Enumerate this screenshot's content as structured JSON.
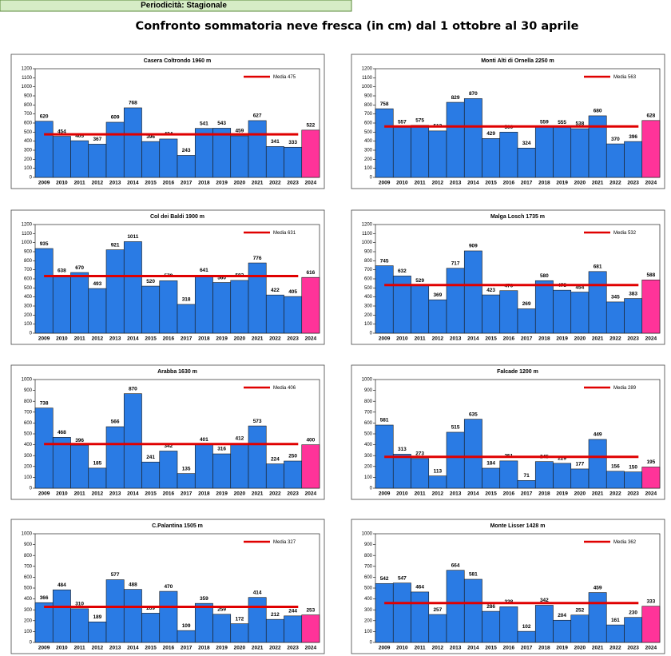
{
  "header": {
    "text": "Periodicità: Stagionale"
  },
  "title": "Confronto sommatoria neve fresca (in cm)  dal 1 ottobre al 30 aprile",
  "chart_data": [
    {
      "type": "bar",
      "title": "Casera Coltrondo 1960 m",
      "categories": [
        "2009",
        "2010",
        "2011",
        "2012",
        "2013",
        "2014",
        "2015",
        "2016",
        "2017",
        "2018",
        "2019",
        "2020",
        "2021",
        "2022",
        "2023",
        "2024"
      ],
      "values": [
        620,
        454,
        405,
        367,
        609,
        768,
        396,
        424,
        243,
        541,
        543,
        459,
        627,
        341,
        333,
        522
      ],
      "colors": [
        "#2a7be4",
        "#2a7be4",
        "#2a7be4",
        "#2a7be4",
        "#2a7be4",
        "#2a7be4",
        "#2a7be4",
        "#2a7be4",
        "#2a7be4",
        "#2a7be4",
        "#2a7be4",
        "#2a7be4",
        "#2a7be4",
        "#2a7be4",
        "#2a7be4",
        "#ff3399"
      ],
      "mean": {
        "label": "Media",
        "value": 475,
        "color": "#e00000"
      },
      "ylim": [
        0,
        1200
      ],
      "yticks": [
        0,
        100,
        200,
        300,
        400,
        500,
        600,
        700,
        800,
        900,
        1000,
        1100,
        1200
      ]
    },
    {
      "type": "bar",
      "title": "Monti Alti di Ornella 2250 m",
      "categories": [
        "2009",
        "2010",
        "2011",
        "2012",
        "2013",
        "2014",
        "2015",
        "2016",
        "2017",
        "2018",
        "2019",
        "2020",
        "2021",
        "2022",
        "2023",
        "2024"
      ],
      "values": [
        758,
        557,
        575,
        513,
        829,
        870,
        429,
        500,
        324,
        559,
        555,
        538,
        680,
        370,
        396,
        628
      ],
      "colors": [
        "#2a7be4",
        "#2a7be4",
        "#2a7be4",
        "#2a7be4",
        "#2a7be4",
        "#2a7be4",
        "#2a7be4",
        "#2a7be4",
        "#2a7be4",
        "#2a7be4",
        "#2a7be4",
        "#2a7be4",
        "#2a7be4",
        "#2a7be4",
        "#2a7be4",
        "#ff3399"
      ],
      "mean": {
        "label": "Media",
        "value": 563,
        "color": "#e00000"
      },
      "ylim": [
        0,
        1200
      ],
      "yticks": [
        0,
        100,
        200,
        300,
        400,
        500,
        600,
        700,
        800,
        900,
        1000,
        1100,
        1200
      ]
    },
    {
      "type": "bar",
      "title": "Col dei Baldi 1900 m",
      "categories": [
        "2009",
        "2010",
        "2011",
        "2012",
        "2013",
        "2014",
        "2015",
        "2016",
        "2017",
        "2018",
        "2019",
        "2020",
        "2021",
        "2022",
        "2023",
        "2024"
      ],
      "values": [
        935,
        638,
        670,
        493,
        921,
        1011,
        520,
        579,
        318,
        641,
        560,
        583,
        776,
        422,
        405,
        616
      ],
      "colors": [
        "#2a7be4",
        "#2a7be4",
        "#2a7be4",
        "#2a7be4",
        "#2a7be4",
        "#2a7be4",
        "#2a7be4",
        "#2a7be4",
        "#2a7be4",
        "#2a7be4",
        "#2a7be4",
        "#2a7be4",
        "#2a7be4",
        "#2a7be4",
        "#2a7be4",
        "#ff3399"
      ],
      "mean": {
        "label": "Media",
        "value": 631,
        "color": "#e00000"
      },
      "ylim": [
        0,
        1200
      ],
      "yticks": [
        0,
        100,
        200,
        300,
        400,
        500,
        600,
        700,
        800,
        900,
        1000,
        1100,
        1200
      ]
    },
    {
      "type": "bar",
      "title": "Malga Losch 1735 m",
      "categories": [
        "2009",
        "2010",
        "2011",
        "2012",
        "2013",
        "2014",
        "2015",
        "2016",
        "2017",
        "2018",
        "2019",
        "2020",
        "2021",
        "2022",
        "2023",
        "2024"
      ],
      "values": [
        745,
        632,
        529,
        369,
        717,
        909,
        423,
        470,
        269,
        580,
        475,
        454,
        681,
        345,
        383,
        588
      ],
      "colors": [
        "#2a7be4",
        "#2a7be4",
        "#2a7be4",
        "#2a7be4",
        "#2a7be4",
        "#2a7be4",
        "#2a7be4",
        "#2a7be4",
        "#2a7be4",
        "#2a7be4",
        "#2a7be4",
        "#2a7be4",
        "#2a7be4",
        "#2a7be4",
        "#2a7be4",
        "#ff3399"
      ],
      "mean": {
        "label": "Media",
        "value": 532,
        "color": "#e00000"
      },
      "ylim": [
        0,
        1200
      ],
      "yticks": [
        0,
        100,
        200,
        300,
        400,
        500,
        600,
        700,
        800,
        900,
        1000,
        1100,
        1200
      ]
    },
    {
      "type": "bar",
      "title": "Arabba 1630 m",
      "categories": [
        "2009",
        "2010",
        "2011",
        "2012",
        "2013",
        "2014",
        "2015",
        "2016",
        "2017",
        "2018",
        "2019",
        "2020",
        "2021",
        "2022",
        "2023",
        "2024"
      ],
      "values": [
        738,
        468,
        396,
        185,
        566,
        870,
        241,
        342,
        135,
        401,
        316,
        412,
        573,
        224,
        250,
        400
      ],
      "colors": [
        "#2a7be4",
        "#2a7be4",
        "#2a7be4",
        "#2a7be4",
        "#2a7be4",
        "#2a7be4",
        "#2a7be4",
        "#2a7be4",
        "#2a7be4",
        "#2a7be4",
        "#2a7be4",
        "#2a7be4",
        "#2a7be4",
        "#2a7be4",
        "#2a7be4",
        "#ff3399"
      ],
      "mean": {
        "label": "Media",
        "value": 406,
        "color": "#e00000"
      },
      "ylim": [
        0,
        1000
      ],
      "yticks": [
        0,
        100,
        200,
        300,
        400,
        500,
        600,
        700,
        800,
        900,
        1000
      ]
    },
    {
      "type": "bar",
      "title": "Falcade 1200 m",
      "categories": [
        "2009",
        "2010",
        "2011",
        "2012",
        "2013",
        "2014",
        "2015",
        "2016",
        "2017",
        "2018",
        "2019",
        "2020",
        "2021",
        "2022",
        "2023",
        "2024"
      ],
      "values": [
        581,
        313,
        273,
        113,
        515,
        635,
        184,
        251,
        71,
        245,
        229,
        177,
        449,
        156,
        150,
        195
      ],
      "colors": [
        "#2a7be4",
        "#2a7be4",
        "#2a7be4",
        "#2a7be4",
        "#2a7be4",
        "#2a7be4",
        "#2a7be4",
        "#2a7be4",
        "#2a7be4",
        "#2a7be4",
        "#2a7be4",
        "#2a7be4",
        "#2a7be4",
        "#2a7be4",
        "#2a7be4",
        "#ff3399"
      ],
      "mean": {
        "label": "Media",
        "value": 289,
        "color": "#e00000"
      },
      "ylim": [
        0,
        1000
      ],
      "yticks": [
        0,
        100,
        200,
        300,
        400,
        500,
        600,
        700,
        800,
        900,
        1000
      ]
    },
    {
      "type": "bar",
      "title": "C.Palantina 1505 m",
      "categories": [
        "2009",
        "2010",
        "2011",
        "2012",
        "2013",
        "2014",
        "2015",
        "2016",
        "2017",
        "2018",
        "2019",
        "2020",
        "2021",
        "2022",
        "2023",
        "2024"
      ],
      "values": [
        366,
        484,
        310,
        189,
        577,
        488,
        269,
        470,
        109,
        359,
        259,
        172,
        414,
        212,
        244,
        253
      ],
      "colors": [
        "#2a7be4",
        "#2a7be4",
        "#2a7be4",
        "#2a7be4",
        "#2a7be4",
        "#2a7be4",
        "#2a7be4",
        "#2a7be4",
        "#2a7be4",
        "#2a7be4",
        "#2a7be4",
        "#2a7be4",
        "#2a7be4",
        "#2a7be4",
        "#2a7be4",
        "#ff3399"
      ],
      "mean": {
        "label": "Media",
        "value": 327,
        "color": "#e00000"
      },
      "ylim": [
        0,
        1000
      ],
      "yticks": [
        0,
        100,
        200,
        300,
        400,
        500,
        600,
        700,
        800,
        900,
        1000
      ]
    },
    {
      "type": "bar",
      "title": "Monte Lisser 1428 m",
      "categories": [
        "2009",
        "2010",
        "2011",
        "2012",
        "2013",
        "2014",
        "2015",
        "2016",
        "2017",
        "2018",
        "2019",
        "2020",
        "2021",
        "2022",
        "2023",
        "2024"
      ],
      "values": [
        542,
        547,
        464,
        257,
        664,
        581,
        286,
        328,
        102,
        342,
        204,
        252,
        459,
        161,
        230,
        333
      ],
      "colors": [
        "#2a7be4",
        "#2a7be4",
        "#2a7be4",
        "#2a7be4",
        "#2a7be4",
        "#2a7be4",
        "#2a7be4",
        "#2a7be4",
        "#2a7be4",
        "#2a7be4",
        "#2a7be4",
        "#2a7be4",
        "#2a7be4",
        "#2a7be4",
        "#2a7be4",
        "#ff3399"
      ],
      "mean": {
        "label": "Media",
        "value": 362,
        "color": "#e00000"
      },
      "ylim": [
        0,
        1000
      ],
      "yticks": [
        0,
        100,
        200,
        300,
        400,
        500,
        600,
        700,
        800,
        900,
        1000
      ]
    }
  ]
}
